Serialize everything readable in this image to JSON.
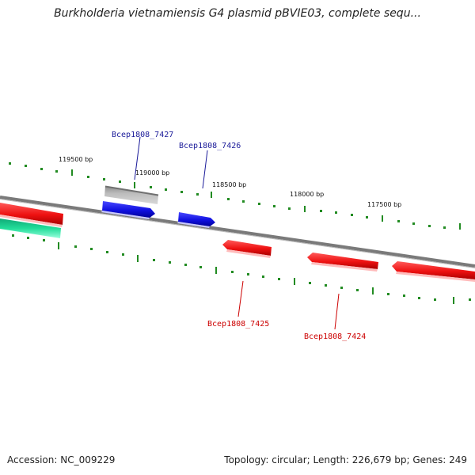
{
  "title": "Burkholderia vietnamiensis G4 plasmid pBVIE03, complete sequ...",
  "accession": "Accession: NC_009229",
  "topology": "Topology: circular; Length: 226,679 bp; Genes: 249",
  "ruler_labels": [
    "119500 bp",
    "119000 bp",
    "118500 bp",
    "118000 bp",
    "117500 bp"
  ],
  "gene_labels": {
    "g7427": "Bcep1808_7427",
    "g7426": "Bcep1808_7426",
    "g7425": "Bcep1808_7425",
    "g7424": "Bcep1808_7424"
  },
  "colors": {
    "backbone": "#7a7a7a",
    "forward_gene": "#1010e0",
    "reverse_gene": "#ee1111",
    "rna_gene": "#b4b4b4",
    "other_gene": "#22dd99",
    "tick": "#228b22",
    "forward_label": "#1a1a99",
    "reverse_label": "#cc0000"
  }
}
